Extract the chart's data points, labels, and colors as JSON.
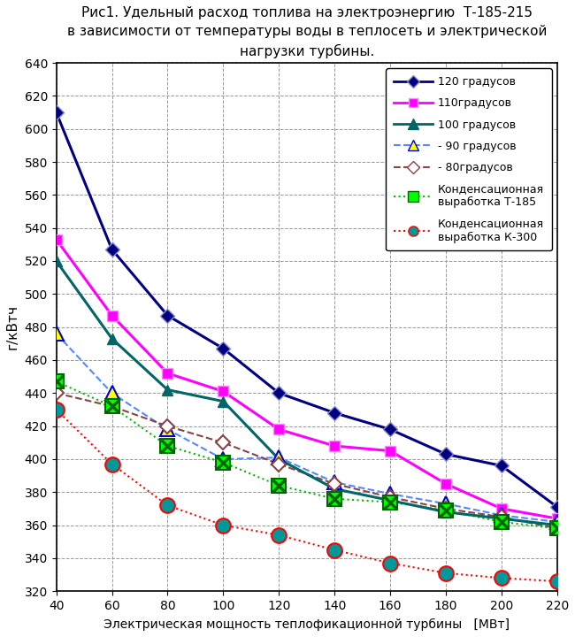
{
  "title": "Рис1. Удельный расход топлива на электроэнергию  Т-185-215\nв зависимости от температуры воды в теплосеть и электрической\nнагрузки турбины.",
  "xlabel": "Электрическая мощность теплофикационной турбины   [МВт]",
  "ylabel": "г/кВтч",
  "xlim": [
    40,
    220
  ],
  "ylim": [
    320,
    640
  ],
  "xticks": [
    40,
    60,
    80,
    100,
    120,
    140,
    160,
    180,
    200,
    220
  ],
  "yticks": [
    320,
    340,
    360,
    380,
    400,
    420,
    440,
    460,
    480,
    500,
    520,
    540,
    560,
    580,
    600,
    620,
    640
  ],
  "x": [
    40,
    60,
    80,
    100,
    120,
    140,
    160,
    180,
    200,
    220
  ],
  "series_120": {
    "label": "120 градусов",
    "y": [
      610,
      527,
      487,
      467,
      440,
      428,
      418,
      403,
      396,
      371
    ],
    "color": "#000080",
    "linestyle": "-",
    "marker": "D",
    "markerface": "#000080",
    "markeredge": "#8888CC",
    "linewidth": 2.2,
    "markersize": 8
  },
  "series_110": {
    "label": "110градусов",
    "y": [
      533,
      487,
      452,
      441,
      418,
      408,
      405,
      385,
      370,
      364
    ],
    "color": "#FF00FF",
    "linestyle": "-",
    "marker": "s",
    "markerface": "#FF00FF",
    "markeredge": "#FF88FF",
    "linewidth": 2.2,
    "markersize": 8
  },
  "series_100": {
    "label": "100 градусов",
    "y": [
      520,
      473,
      442,
      435,
      400,
      382,
      375,
      368,
      364,
      360
    ],
    "color": "#006666",
    "linestyle": "-",
    "marker": "^",
    "markerface": "#006666",
    "markeredge": "#006666",
    "linewidth": 2.2,
    "markersize": 9
  },
  "series_90": {
    "label": "- 90 градусов",
    "y": [
      476,
      440,
      418,
      400,
      401,
      386,
      379,
      373,
      366,
      362
    ],
    "color": "#5588FF",
    "linestyle": "--",
    "marker": "^",
    "markerface": "#FFFF00",
    "markeredge": "#0000DD",
    "linewidth": 1.5,
    "markersize": 12
  },
  "series_80": {
    "label": "- 80градусов",
    "y": [
      440,
      432,
      420,
      410,
      397,
      385,
      377,
      370,
      365,
      358
    ],
    "color": "#884444",
    "linestyle": "--",
    "marker": "D",
    "markerface": "#FFFFFF",
    "markeredge": "#884444",
    "linewidth": 1.5,
    "markersize": 8
  },
  "series_t185": {
    "label": "Конденсационная\nвыработка Т-185",
    "y": [
      447,
      432,
      408,
      398,
      384,
      376,
      374,
      369,
      362,
      358
    ],
    "color": "#00BB00",
    "linestyle": "dotted",
    "marker": "s",
    "markerface": "#00FF00",
    "markeredge": "#006600",
    "linewidth": 1.5,
    "markersize": 12
  },
  "series_k300": {
    "label": "Конденсационная\nвыработка К-300",
    "y": [
      430,
      397,
      372,
      360,
      354,
      345,
      337,
      331,
      328,
      326
    ],
    "color": "#FF0000",
    "linestyle": "dotted",
    "marker": "o",
    "markerface": "#009999",
    "markeredge": "#FF0000",
    "linewidth": 1.5,
    "markersize": 12
  },
  "background_color": "#FFFFFF",
  "grid_color": "#999999",
  "title_fontsize": 11
}
